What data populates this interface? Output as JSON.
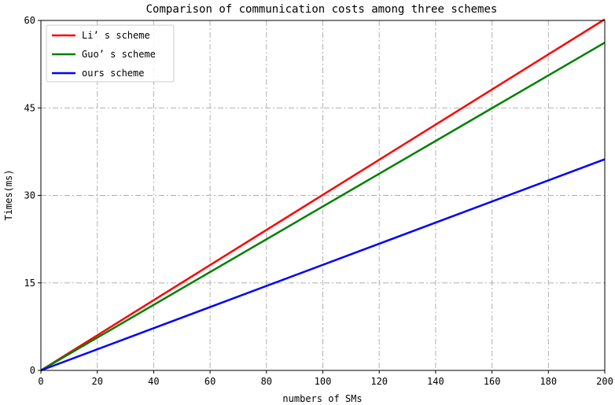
{
  "chart_data": {
    "type": "line",
    "title": "Comparison of communication costs among three schemes",
    "xlabel": "numbers of SMs",
    "ylabel": "Times(ms)",
    "xlim": [
      0,
      200
    ],
    "ylim": [
      0,
      60
    ],
    "xticks": [
      0,
      20,
      40,
      60,
      80,
      100,
      120,
      140,
      160,
      180,
      200
    ],
    "yticks": [
      0,
      15,
      30,
      45,
      60
    ],
    "grid": true,
    "legend_position": "top-left",
    "series": [
      {
        "name": "Li’ s scheme",
        "color": "#ff0000",
        "x": [
          0,
          200
        ],
        "y": [
          0,
          60.2
        ]
      },
      {
        "name": "Guo’ s scheme",
        "color": "#008000",
        "x": [
          0,
          200
        ],
        "y": [
          0,
          56.2
        ]
      },
      {
        "name": "ours scheme",
        "color": "#0000ff",
        "x": [
          0,
          200
        ],
        "y": [
          0,
          36.2
        ]
      }
    ]
  }
}
